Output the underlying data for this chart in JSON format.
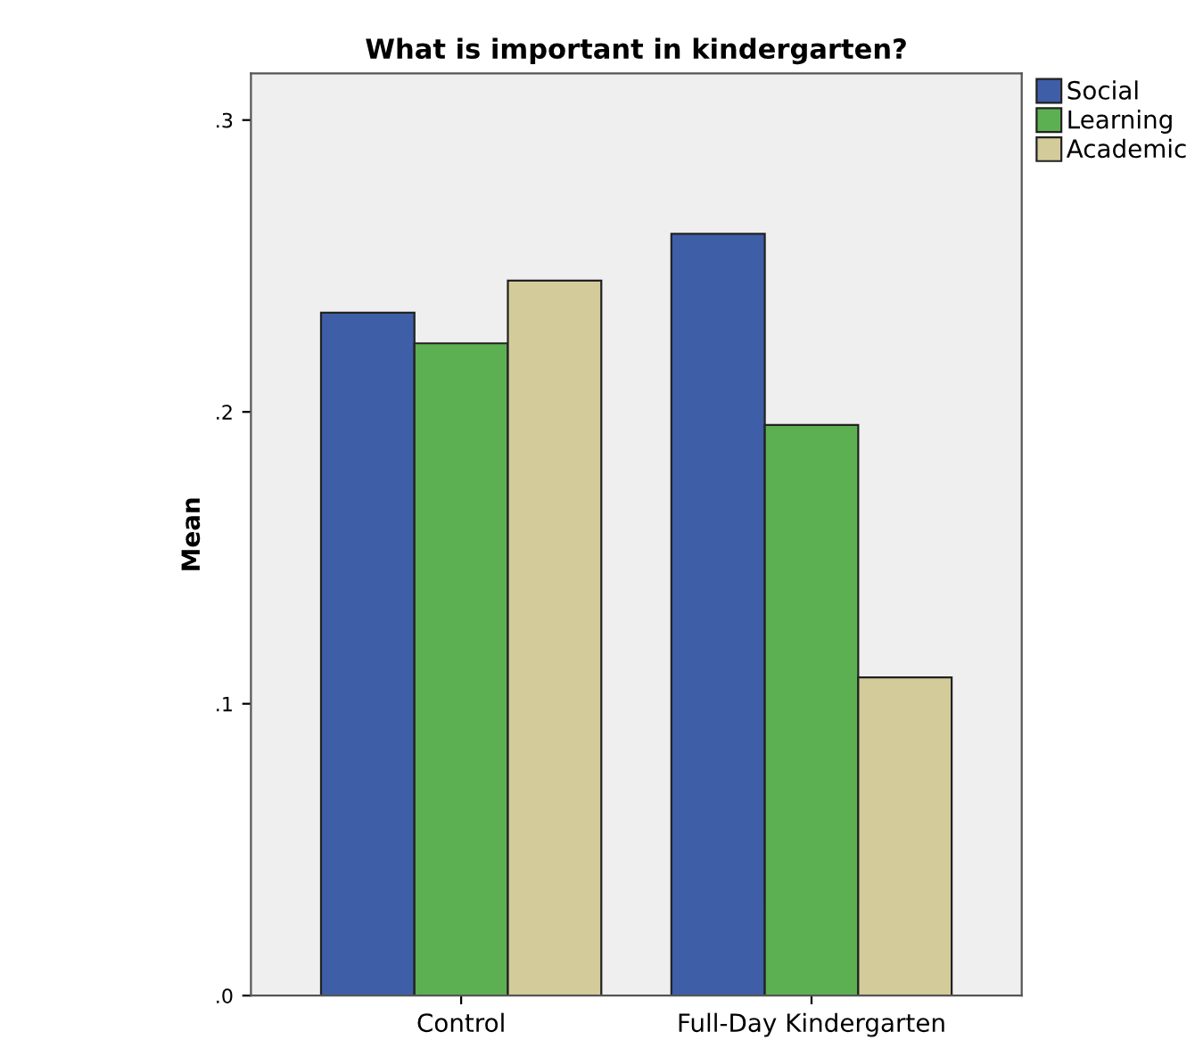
{
  "chart_data": {
    "type": "bar",
    "title": "What is important in kindergarten?",
    "ylabel": "Mean",
    "categories": [
      "Control",
      "Full-Day Kindergarten"
    ],
    "series": [
      {
        "name": "Social",
        "color": "#3f5ea8",
        "values": [
          0.234,
          0.261
        ]
      },
      {
        "name": "Learning",
        "color": "#5db051",
        "values": [
          0.2235,
          0.1955
        ]
      },
      {
        "name": "Academic",
        "color": "#d3cc9a",
        "values": [
          0.245,
          0.109
        ]
      }
    ],
    "ylim": [
      0,
      0.316
    ],
    "yticks": [
      {
        "value": 0,
        "label": ".0"
      },
      {
        "value": 0.1,
        "label": ".1"
      },
      {
        "value": 0.2,
        "label": ".2"
      },
      {
        "value": 0.3,
        "label": ".3"
      }
    ],
    "grid": false,
    "legend": "top right"
  }
}
